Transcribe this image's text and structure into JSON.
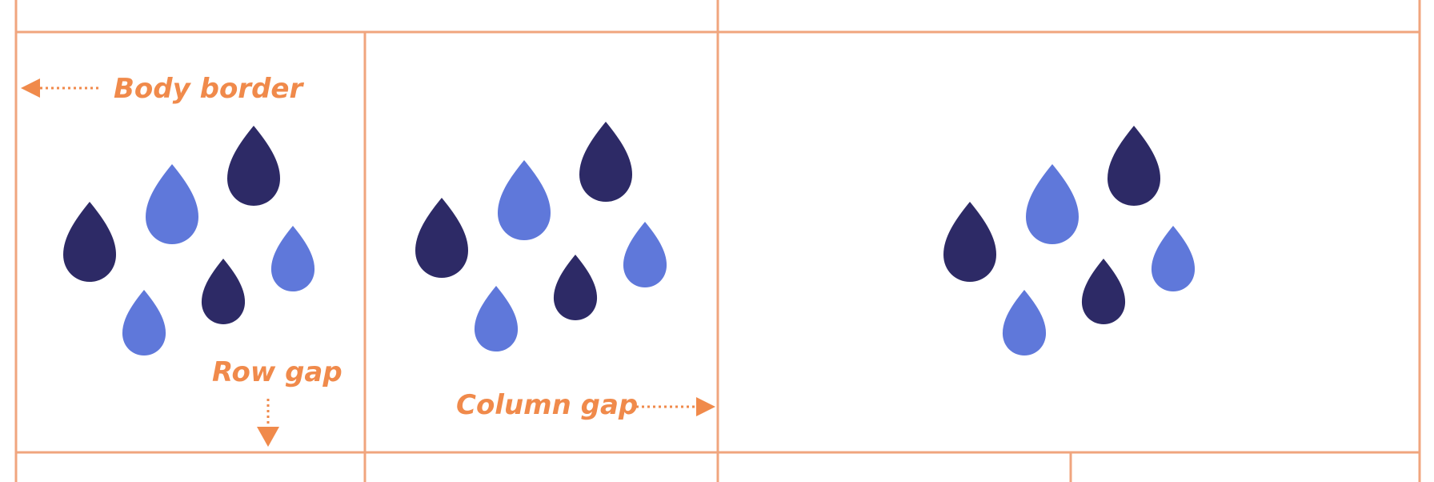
{
  "colors": {
    "grid_line": "#f0a57e",
    "annotation": "#f08a4b",
    "drop_dark": "#2d2a66",
    "drop_light": "#5f78da",
    "background": "#ffffff"
  },
  "annotations": {
    "body_border": "Body border",
    "row_gap": "Row gap",
    "column_gap": "Column gap"
  },
  "icons": {
    "arrow_left": "arrow-left-icon",
    "arrow_down": "arrow-down-icon",
    "arrow_right": "arrow-right-icon",
    "drop_cluster": "water-drops-icon"
  }
}
